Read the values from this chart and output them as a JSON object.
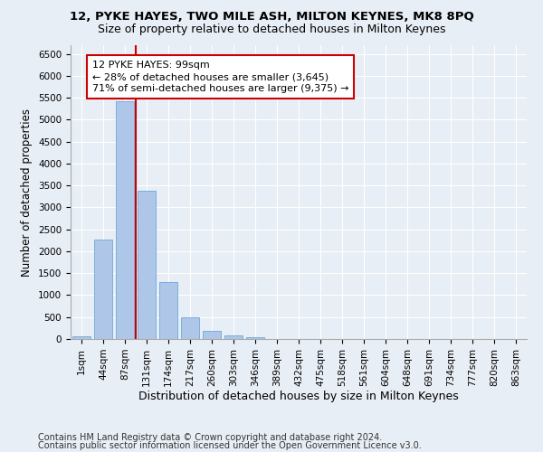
{
  "title1": "12, PYKE HAYES, TWO MILE ASH, MILTON KEYNES, MK8 8PQ",
  "title2": "Size of property relative to detached houses in Milton Keynes",
  "xlabel": "Distribution of detached houses by size in Milton Keynes",
  "ylabel": "Number of detached properties",
  "categories": [
    "1sqm",
    "44sqm",
    "87sqm",
    "131sqm",
    "174sqm",
    "217sqm",
    "260sqm",
    "303sqm",
    "346sqm",
    "389sqm",
    "432sqm",
    "475sqm",
    "518sqm",
    "561sqm",
    "604sqm",
    "648sqm",
    "691sqm",
    "734sqm",
    "777sqm",
    "820sqm",
    "863sqm"
  ],
  "values": [
    60,
    2260,
    5430,
    3380,
    1290,
    490,
    185,
    90,
    50,
    0,
    0,
    0,
    0,
    0,
    0,
    0,
    0,
    0,
    0,
    0,
    0
  ],
  "bar_color": "#aec6e8",
  "bar_edgecolor": "#5a9fd4",
  "vline_x": 2.5,
  "vline_color": "#cc0000",
  "annotation_text": "12 PYKE HAYES: 99sqm\n← 28% of detached houses are smaller (3,645)\n71% of semi-detached houses are larger (9,375) →",
  "annotation_box_edgecolor": "#cc0000",
  "annotation_box_facecolor": "#ffffff",
  "ylim": [
    0,
    6700
  ],
  "yticks": [
    0,
    500,
    1000,
    1500,
    2000,
    2500,
    3000,
    3500,
    4000,
    4500,
    5000,
    5500,
    6000,
    6500
  ],
  "bg_color": "#e8eef5",
  "footer1": "Contains HM Land Registry data © Crown copyright and database right 2024.",
  "footer2": "Contains public sector information licensed under the Open Government Licence v3.0.",
  "title1_fontsize": 9.5,
  "title2_fontsize": 9,
  "xlabel_fontsize": 9,
  "ylabel_fontsize": 8.5,
  "tick_fontsize": 7.5,
  "annotation_fontsize": 8,
  "footer_fontsize": 7
}
